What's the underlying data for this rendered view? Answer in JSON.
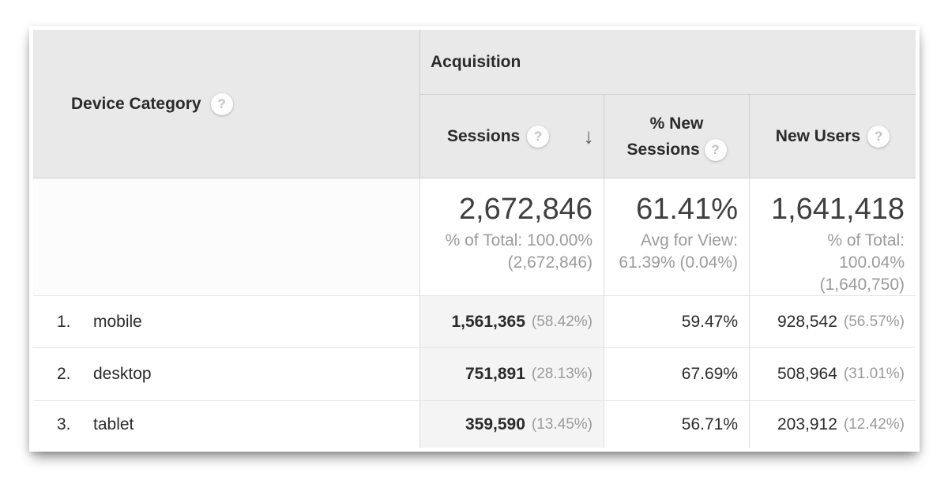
{
  "icons": {
    "help": "?",
    "sort_desc": "↓"
  },
  "colors": {
    "header_bg": "#e9e9e9",
    "header_divider": "#d0d0d0",
    "body_divider": "#dedede",
    "row_border": "#e4e4e4",
    "sorted_column_bg": "#f4f4f4",
    "text_dark": "#2a2a2a",
    "text_gray": "#9b9b9b"
  },
  "table": {
    "dimension_header": "Device Category",
    "group_header": "Acquisition",
    "columns": {
      "sessions": "Sessions",
      "pct_new_sessions_line1": "% New",
      "pct_new_sessions_line2": "Sessions",
      "new_users": "New Users"
    },
    "totals": {
      "sessions": {
        "value": "2,672,846",
        "notes": [
          "% of Total: 100.00%",
          "(2,672,846)"
        ]
      },
      "pct_new_sessions": {
        "value": "61.41%",
        "notes": [
          "Avg for View:",
          "61.39% (0.04%)"
        ]
      },
      "new_users": {
        "value": "1,641,418",
        "notes": [
          "% of Total:",
          "100.04%",
          "(1,640,750)"
        ]
      }
    },
    "rows": [
      {
        "index": "1.",
        "name": "mobile",
        "sessions": "1,561,365",
        "sessions_pct": "(58.42%)",
        "pct_new_sessions": "59.47%",
        "new_users": "928,542",
        "new_users_pct": "(56.57%)"
      },
      {
        "index": "2.",
        "name": "desktop",
        "sessions": "751,891",
        "sessions_pct": "(28.13%)",
        "pct_new_sessions": "67.69%",
        "new_users": "508,964",
        "new_users_pct": "(31.01%)"
      },
      {
        "index": "3.",
        "name": "tablet",
        "sessions": "359,590",
        "sessions_pct": "(13.45%)",
        "pct_new_sessions": "56.71%",
        "new_users": "203,912",
        "new_users_pct": "(12.42%)"
      }
    ]
  }
}
